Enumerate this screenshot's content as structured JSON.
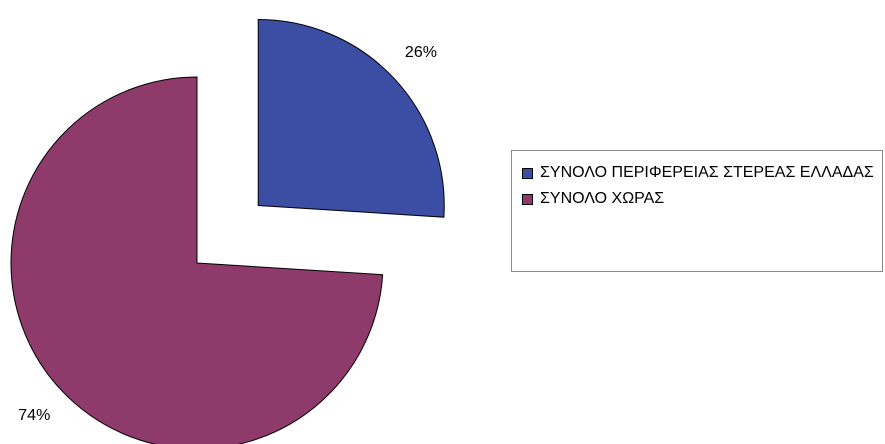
{
  "chart_data": {
    "type": "pie",
    "categories": [
      "ΣΥΝΟΛΟ ΠΕΡΙΦΕΡΕΙΑΣ ΣΤΕΡΕΑΣ ΕΛΛΑΔΑΣ",
      "ΣΥΝΟΛΟ ΧΩΡΑΣ"
    ],
    "values": [
      26,
      74
    ],
    "value_labels": [
      "26%",
      "74%"
    ],
    "colors": [
      "#3b4ea3",
      "#8e3a6a"
    ],
    "legend": "right"
  }
}
